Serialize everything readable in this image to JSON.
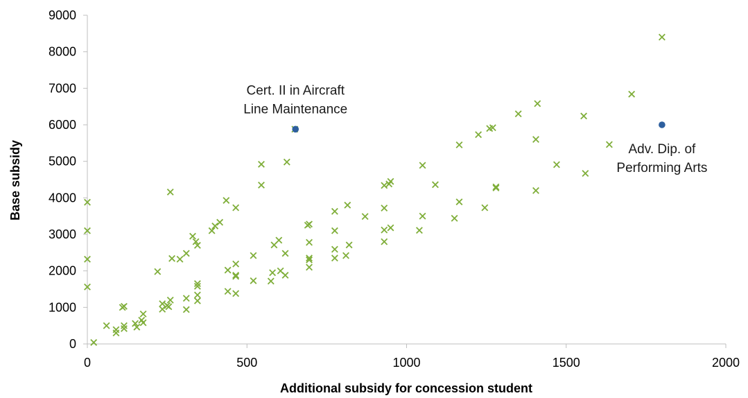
{
  "chart_data": {
    "type": "scatter",
    "title": "",
    "xlabel": "Additional subsidy for concession student",
    "ylabel": "Base subsidy",
    "xlim": [
      0,
      2000
    ],
    "ylim": [
      0,
      9000
    ],
    "xticks": [
      "0",
      "500",
      "1000",
      "1500",
      "2000"
    ],
    "yticks": [
      "0",
      "1000",
      "2000",
      "3000",
      "4000",
      "5000",
      "6000",
      "7000",
      "8000",
      "9000"
    ],
    "grid": false,
    "legend": "none",
    "colors": {
      "marker": "#7fae3a",
      "highlight": "#2e5f9e",
      "axis": "#bfbfbf"
    },
    "series": [
      {
        "marker": "x",
        "points": [
          [
            0,
            3880
          ],
          [
            0,
            3100
          ],
          [
            0,
            2320
          ],
          [
            0,
            1560
          ],
          [
            20,
            40
          ],
          [
            60,
            500
          ],
          [
            90,
            390
          ],
          [
            90,
            300
          ],
          [
            110,
            1000
          ],
          [
            115,
            1030
          ],
          [
            115,
            500
          ],
          [
            115,
            420
          ],
          [
            150,
            560
          ],
          [
            155,
            460
          ],
          [
            170,
            650
          ],
          [
            175,
            820
          ],
          [
            175,
            580
          ],
          [
            220,
            1980
          ],
          [
            235,
            1100
          ],
          [
            235,
            950
          ],
          [
            250,
            1050
          ],
          [
            255,
            1020
          ],
          [
            260,
            1200
          ],
          [
            260,
            4160
          ],
          [
            265,
            2340
          ],
          [
            290,
            2320
          ],
          [
            310,
            2480
          ],
          [
            310,
            1250
          ],
          [
            310,
            940
          ],
          [
            330,
            2950
          ],
          [
            340,
            2800
          ],
          [
            345,
            2700
          ],
          [
            345,
            1650
          ],
          [
            345,
            1580
          ],
          [
            345,
            1340
          ],
          [
            345,
            1180
          ],
          [
            390,
            3100
          ],
          [
            400,
            3230
          ],
          [
            415,
            3330
          ],
          [
            435,
            3930
          ],
          [
            440,
            2020
          ],
          [
            440,
            1440
          ],
          [
            465,
            3730
          ],
          [
            465,
            2190
          ],
          [
            465,
            1880
          ],
          [
            465,
            1850
          ],
          [
            465,
            1380
          ],
          [
            520,
            2420
          ],
          [
            520,
            1730
          ],
          [
            545,
            4920
          ],
          [
            545,
            4350
          ],
          [
            575,
            1720
          ],
          [
            580,
            1950
          ],
          [
            585,
            2710
          ],
          [
            600,
            2840
          ],
          [
            605,
            2000
          ],
          [
            620,
            2480
          ],
          [
            620,
            1880
          ],
          [
            625,
            4980
          ],
          [
            650,
            5880
          ],
          [
            690,
            3250
          ],
          [
            695,
            3280
          ],
          [
            695,
            2780
          ],
          [
            695,
            2350
          ],
          [
            695,
            2300
          ],
          [
            695,
            2100
          ],
          [
            775,
            3630
          ],
          [
            775,
            3100
          ],
          [
            775,
            2590
          ],
          [
            775,
            2350
          ],
          [
            810,
            2420
          ],
          [
            815,
            3800
          ],
          [
            820,
            2710
          ],
          [
            870,
            3490
          ],
          [
            930,
            4340
          ],
          [
            930,
            3720
          ],
          [
            930,
            3120
          ],
          [
            930,
            2800
          ],
          [
            945,
            4380
          ],
          [
            950,
            4450
          ],
          [
            950,
            3180
          ],
          [
            1040,
            3110
          ],
          [
            1050,
            4890
          ],
          [
            1050,
            3500
          ],
          [
            1090,
            4360
          ],
          [
            1150,
            3440
          ],
          [
            1165,
            5450
          ],
          [
            1165,
            3890
          ],
          [
            1225,
            5730
          ],
          [
            1245,
            3730
          ],
          [
            1260,
            5900
          ],
          [
            1270,
            5920
          ],
          [
            1280,
            4300
          ],
          [
            1280,
            4270
          ],
          [
            1350,
            6300
          ],
          [
            1405,
            5600
          ],
          [
            1405,
            4200
          ],
          [
            1410,
            6580
          ],
          [
            1470,
            4910
          ],
          [
            1555,
            6240
          ],
          [
            1560,
            4670
          ],
          [
            1635,
            5460
          ],
          [
            1705,
            6840
          ],
          [
            1800,
            8400
          ]
        ]
      },
      {
        "marker": "dot",
        "points": [
          [
            652,
            5880
          ],
          [
            1800,
            6000
          ]
        ]
      }
    ],
    "annotations": [
      {
        "lines": [
          "Cert. II in Aircraft",
          "Line Maintenance"
        ],
        "x": 652,
        "y": 5880
      },
      {
        "lines": [
          "Adv. Dip. of",
          "Performing Arts"
        ],
        "x": 1800,
        "y": 6000
      }
    ]
  }
}
